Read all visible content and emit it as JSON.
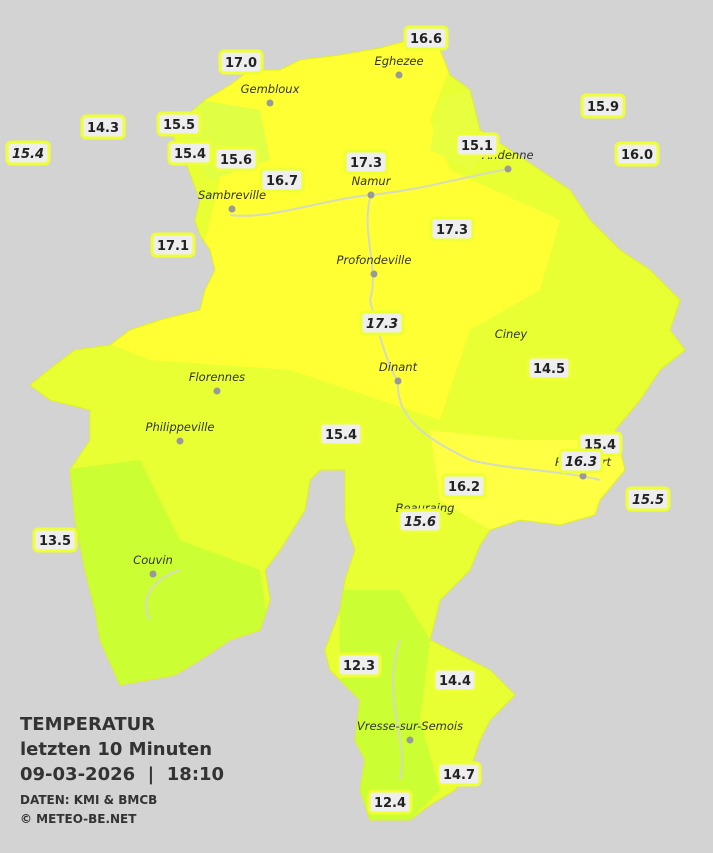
{
  "title": {
    "heading": "TEMPERATUR",
    "subtitle": "letzten 10 Minuten",
    "datetime": "09-03-2026  |  18:10",
    "source": "DATEN: KMI & BMCB",
    "copyright": "© METEO-BE.NET"
  },
  "places": [
    "Eghezee",
    "Gembloux",
    "Andenne",
    "Namur",
    "Sambreville",
    "Profondeville",
    "Ciney",
    "Dinant",
    "Florennes",
    "Philippeville",
    "Rochefort",
    "Beauraing",
    "Couvin",
    "Vresse-sur-Semois"
  ],
  "stations": [
    {
      "label": "16.6",
      "italic": false
    },
    {
      "label": "17.0",
      "italic": false
    },
    {
      "label": "15.9",
      "italic": false
    },
    {
      "label": "14.3",
      "italic": false
    },
    {
      "label": "15.5",
      "italic": false
    },
    {
      "label": "15.4",
      "italic": true
    },
    {
      "label": "15.4",
      "italic": false
    },
    {
      "label": "15.6",
      "italic": false
    },
    {
      "label": "15.1",
      "italic": false
    },
    {
      "label": "16.0",
      "italic": false
    },
    {
      "label": "17.3",
      "italic": false
    },
    {
      "label": "16.7",
      "italic": false
    },
    {
      "label": "17.3",
      "italic": false
    },
    {
      "label": "17.1",
      "italic": false
    },
    {
      "label": "17.3",
      "italic": true
    },
    {
      "label": "14.5",
      "italic": false
    },
    {
      "label": "15.4",
      "italic": false
    },
    {
      "label": "15.4",
      "italic": false
    },
    {
      "label": "16.3",
      "italic": true
    },
    {
      "label": "16.2",
      "italic": false
    },
    {
      "label": "15.5",
      "italic": true
    },
    {
      "label": "15.6",
      "italic": true
    },
    {
      "label": "13.5",
      "italic": false
    },
    {
      "label": "12.3",
      "italic": false
    },
    {
      "label": "14.4",
      "italic": false
    },
    {
      "label": "14.7",
      "italic": false
    },
    {
      "label": "12.4",
      "italic": false
    }
  ]
}
